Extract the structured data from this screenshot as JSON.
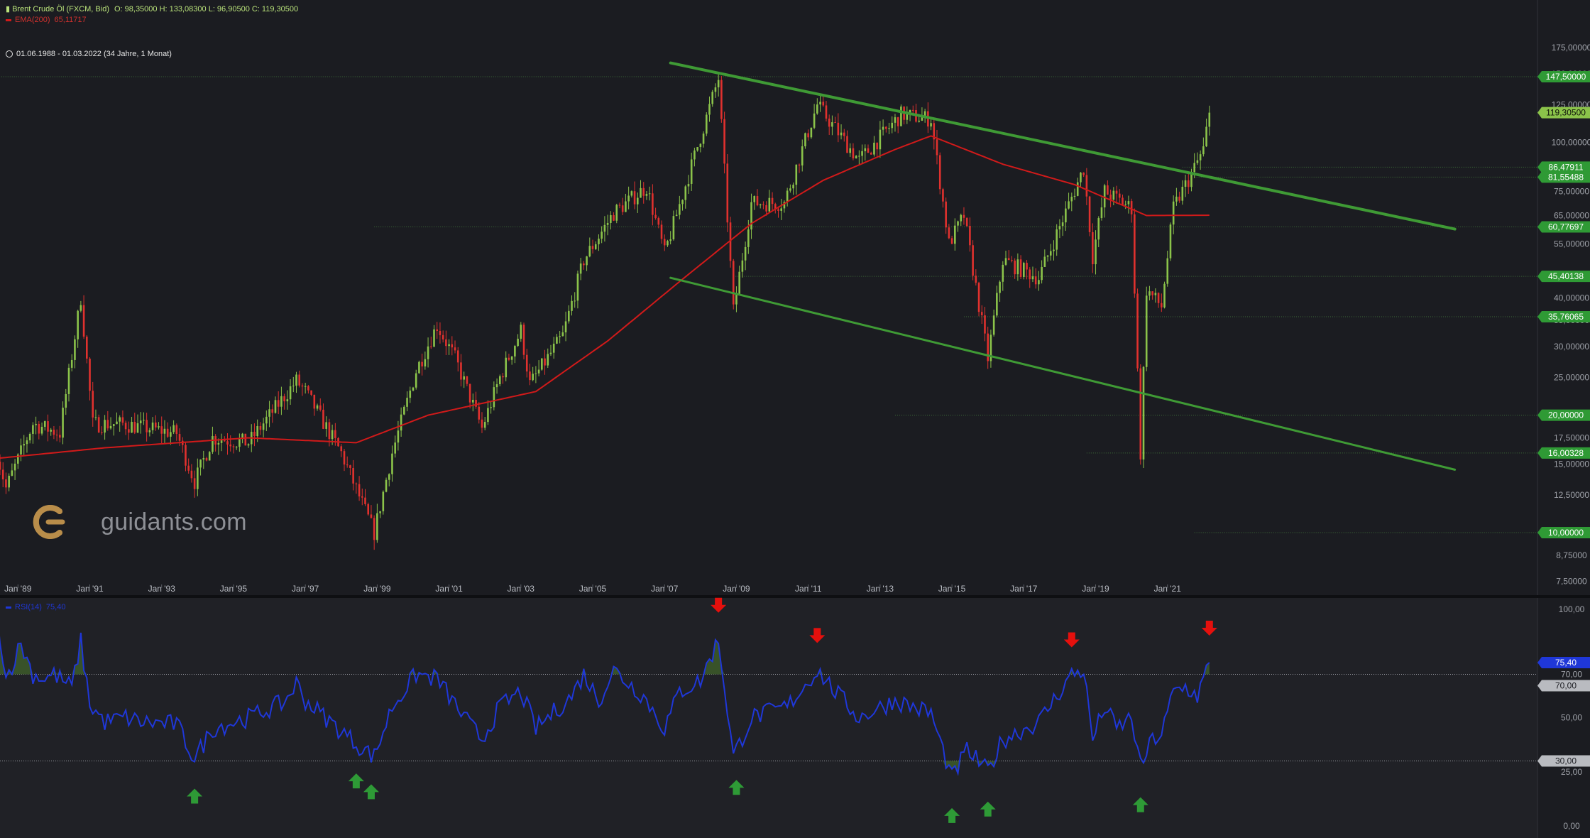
{
  "header": {
    "instrument": "Brent Crude Öl (FXCM, Bid)",
    "ohlc": "O: 98,35000   H: 133,08300   L: 96,90500   C: 119,30500",
    "ema_label": "EMA(200)",
    "ema_value": "65,11717",
    "range": "01.06.1988 - 01.03.2022   (34 Jahre, 1 Monat)",
    "rsi_label": "RSI(14)",
    "rsi_value": "75,40"
  },
  "brand": {
    "name": "guidants.com"
  },
  "colors": {
    "background": "#1b1c21",
    "rsi_background": "#202126",
    "up_candle": "#8bc34a",
    "down_candle": "#e0312e",
    "ema": "#d11a1a",
    "channel": "#3f9a35",
    "rsi_line": "#1f37d8",
    "arrow_up": "#2e9a36",
    "arrow_down": "#e5100d"
  },
  "chart_data": [
    {
      "type": "candlestick",
      "title": "Brent Crude Öl (FXCM, Bid)",
      "y_scale": "log",
      "ylim": [
        7.0,
        200
      ],
      "x_range": [
        "1988-06",
        "2022-03"
      ],
      "x_ticks": [
        "Jan '89",
        "Jan '91",
        "Jan '93",
        "Jan '95",
        "Jan '97",
        "Jan '99",
        "Jan '01",
        "Jan '03",
        "Jan '05",
        "Jan '07",
        "Jan '09",
        "Jan '11",
        "Jan '13",
        "Jan '15",
        "Jan '17",
        "Jan '19",
        "Jan '21"
      ],
      "y_ticks": [
        "7,50000",
        "8,75000",
        "10,00000",
        "12,50000",
        "15,00000",
        "17,50000",
        "20,00000",
        "25,00000",
        "30,00000",
        "35,00000",
        "40,00000",
        "45,00000",
        "55,00000",
        "65,00000",
        "75,00000",
        "85,00000",
        "100,00000",
        "125,00000",
        "150,00000",
        "175,00000"
      ],
      "price_path": [
        [
          "1988-06",
          16
        ],
        [
          "1988-09",
          13
        ],
        [
          "1989-06",
          19
        ],
        [
          "1990-03",
          18
        ],
        [
          "1990-10",
          40
        ],
        [
          "1991-02",
          19
        ],
        [
          "1991-12",
          19
        ],
        [
          "1993-06",
          18
        ],
        [
          "1993-12",
          13.5
        ],
        [
          "1994-06",
          17.5
        ],
        [
          "1995-06",
          17
        ],
        [
          "1996-10",
          24.5
        ],
        [
          "1997-01",
          23
        ],
        [
          "1998-01",
          16
        ],
        [
          "1998-12",
          10
        ],
        [
          "1999-06",
          16
        ],
        [
          "2000-02",
          26
        ],
        [
          "2000-09",
          34
        ],
        [
          "2001-03",
          28
        ],
        [
          "2001-12",
          18.5
        ],
        [
          "2002-06",
          25
        ],
        [
          "2003-01",
          33
        ],
        [
          "2003-04",
          24
        ],
        [
          "2004-03",
          32
        ],
        [
          "2004-10",
          50
        ],
        [
          "2005-08",
          66
        ],
        [
          "2006-07",
          77
        ],
        [
          "2007-01",
          52
        ],
        [
          "2008-07",
          146
        ],
        [
          "2008-12",
          37
        ],
        [
          "2009-06",
          70
        ],
        [
          "2010-05",
          70
        ],
        [
          "2011-04",
          125
        ],
        [
          "2012-06",
          90
        ],
        [
          "2013-08",
          118
        ],
        [
          "2014-06",
          115
        ],
        [
          "2014-12",
          55
        ],
        [
          "2015-05",
          65
        ],
        [
          "2016-01",
          28
        ],
        [
          "2016-06",
          50
        ],
        [
          "2017-06",
          45
        ],
        [
          "2018-09",
          86
        ],
        [
          "2018-12",
          51
        ],
        [
          "2019-04",
          75
        ],
        [
          "2020-01",
          68
        ],
        [
          "2020-04",
          16
        ],
        [
          "2020-06",
          42
        ],
        [
          "2020-11",
          38
        ],
        [
          "2021-03",
          68
        ],
        [
          "2021-10",
          86
        ],
        [
          "2022-01",
          96
        ],
        [
          "2022-03",
          119.3
        ]
      ],
      "ema200": [
        [
          "1988-06",
          15.5
        ],
        [
          "1991-06",
          16.5
        ],
        [
          "1995-06",
          17.5
        ],
        [
          "1998-06",
          17
        ],
        [
          "2000-06",
          20
        ],
        [
          "2003-06",
          23
        ],
        [
          "2005-06",
          31
        ],
        [
          "2007-06",
          44
        ],
        [
          "2009-06",
          62
        ],
        [
          "2011-06",
          80
        ],
        [
          "2013-06",
          96
        ],
        [
          "2014-06",
          104
        ],
        [
          "2016-06",
          88
        ],
        [
          "2018-06",
          78
        ],
        [
          "2020-06",
          65
        ],
        [
          "2022-03",
          65.12
        ]
      ],
      "last_price": 119.305,
      "levels": [
        {
          "value": 147.5,
          "label": "147,50000",
          "from": "1988-06"
        },
        {
          "value": 119.305,
          "label": "119,30500",
          "from": "2022-03",
          "is_last": true
        },
        {
          "value": 86.47911,
          "label": "86,47911",
          "from": "2021-06"
        },
        {
          "value": 81.55488,
          "label": "81,55488",
          "from": "2021-10"
        },
        {
          "value": 60.77697,
          "label": "60,77697",
          "from": "1998-12"
        },
        {
          "value": 45.40138,
          "label": "45,40138",
          "from": "2008-12"
        },
        {
          "value": 35.76065,
          "label": "35,76065",
          "from": "2015-05"
        },
        {
          "value": 20.0,
          "label": "20,00000",
          "from": "2013-06"
        },
        {
          "value": 16.00328,
          "label": "16,00328",
          "from": "2018-10"
        },
        {
          "value": 10.0,
          "label": "10,00000",
          "from": "2021-10"
        }
      ],
      "channel_lines": [
        {
          "from": [
            "2007-03",
            160
          ],
          "to": [
            "2029-01",
            60
          ]
        },
        {
          "from": [
            "2007-03",
            45
          ],
          "to": [
            "2029-01",
            14.5
          ]
        }
      ]
    },
    {
      "type": "line",
      "title": "RSI(14)",
      "ylim": [
        0,
        100
      ],
      "y_ticks": [
        "0,00",
        "25,00",
        "50,00",
        "70,00",
        "100,00"
      ],
      "thresholds": [
        {
          "value": 70,
          "label": "70,00"
        },
        {
          "value": 30,
          "label": "30,00"
        }
      ],
      "current": {
        "value": 75.4,
        "label": "75,40"
      },
      "rsi_path": [
        [
          "1988-06",
          99
        ],
        [
          "1988-09",
          68
        ],
        [
          "1989-02",
          84
        ],
        [
          "1989-06",
          70
        ],
        [
          "1989-10",
          68
        ],
        [
          "1990-01",
          70
        ],
        [
          "1990-07",
          64
        ],
        [
          "1990-10",
          85
        ],
        [
          "1991-01",
          56
        ],
        [
          "1991-06",
          48
        ],
        [
          "1992-01",
          50
        ],
        [
          "1992-06",
          48
        ],
        [
          "1993-06",
          47
        ],
        [
          "1993-12",
          31
        ],
        [
          "1994-06",
          45
        ],
        [
          "1995-06",
          50
        ],
        [
          "1996-06",
          57
        ],
        [
          "1996-10",
          66
        ],
        [
          "1997-01",
          58
        ],
        [
          "1997-06",
          52
        ],
        [
          "1998-06",
          38
        ],
        [
          "1998-12",
          32
        ],
        [
          "1999-06",
          55
        ],
        [
          "2000-02",
          70
        ],
        [
          "2000-09",
          68
        ],
        [
          "2001-06",
          50
        ],
        [
          "2001-12",
          40
        ],
        [
          "2002-06",
          55
        ],
        [
          "2003-01",
          62
        ],
        [
          "2003-06",
          45
        ],
        [
          "2004-06",
          60
        ],
        [
          "2004-10",
          70
        ],
        [
          "2005-03",
          58
        ],
        [
          "2005-08",
          72
        ],
        [
          "2006-06",
          60
        ],
        [
          "2007-01",
          45
        ],
        [
          "2007-06",
          62
        ],
        [
          "2008-01",
          67
        ],
        [
          "2008-07",
          86
        ],
        [
          "2008-12",
          32
        ],
        [
          "2009-06",
          50
        ],
        [
          "2010-06",
          55
        ],
        [
          "2011-04",
          72
        ],
        [
          "2011-10",
          62
        ],
        [
          "2012-06",
          50
        ],
        [
          "2013-06",
          58
        ],
        [
          "2014-06",
          52
        ],
        [
          "2015-01",
          22
        ],
        [
          "2015-06",
          35
        ],
        [
          "2016-01",
          25
        ],
        [
          "2016-06",
          40
        ],
        [
          "2017-06",
          48
        ],
        [
          "2018-05",
          70
        ],
        [
          "2018-09",
          72
        ],
        [
          "2018-12",
          40
        ],
        [
          "2019-04",
          55
        ],
        [
          "2019-08",
          45
        ],
        [
          "2020-01",
          50
        ],
        [
          "2020-04",
          27
        ],
        [
          "2020-08",
          40
        ],
        [
          "2020-11",
          42
        ],
        [
          "2021-03",
          62
        ],
        [
          "2021-07",
          64
        ],
        [
          "2021-11",
          60
        ],
        [
          "2022-03",
          75.4
        ]
      ],
      "signals": [
        {
          "date": "1993-12",
          "dir": "up"
        },
        {
          "date": "1998-06",
          "dir": "up"
        },
        {
          "date": "1998-11",
          "dir": "up"
        },
        {
          "date": "2008-07",
          "dir": "down"
        },
        {
          "date": "2009-01",
          "dir": "up"
        },
        {
          "date": "2011-04",
          "dir": "down"
        },
        {
          "date": "2015-01",
          "dir": "up"
        },
        {
          "date": "2016-01",
          "dir": "up"
        },
        {
          "date": "2018-05",
          "dir": "down"
        },
        {
          "date": "2020-04",
          "dir": "up"
        },
        {
          "date": "2022-03",
          "dir": "down"
        }
      ]
    }
  ]
}
